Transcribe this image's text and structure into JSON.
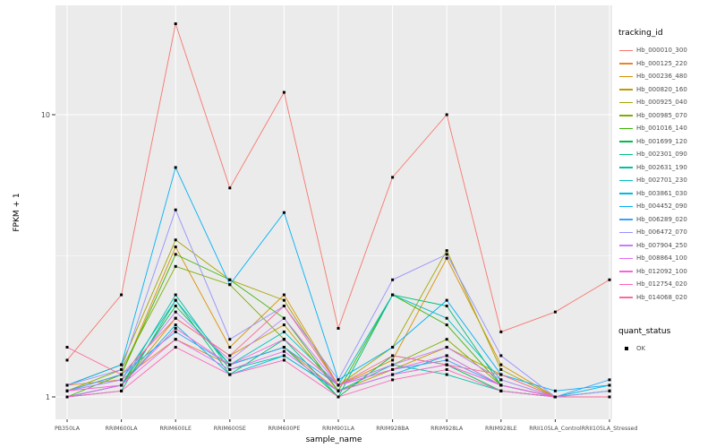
{
  "chart_data": {
    "type": "line",
    "title": "",
    "xlabel": "sample_name",
    "ylabel": "FPKM + 1",
    "y_scale": "log10",
    "y_ticks": [
      1,
      10
    ],
    "y_minor_ticks": [
      3.1623
    ],
    "ylim_log": [
      1,
      24
    ],
    "grid": true,
    "panel_bg": "#EBEBEB",
    "grid_color": "#FFFFFF",
    "axis_text_color": "#4D4D4D",
    "tick_color": "#333333",
    "point_color": "#000000",
    "legend_position": "right",
    "categories": [
      "PB350LA",
      "RRIM600LA",
      "RRIM600LE",
      "RRIM600SE",
      "RRIM600PE",
      "RRIM901LA",
      "RRIM928BA",
      "RRIM928LA",
      "RRIM928LE",
      "RRII105LA_Control",
      "RRII105LA_Stressed"
    ],
    "series": [
      {
        "name": "Hb_000010_300",
        "color": "#F8766D",
        "values": [
          1.35,
          2.3,
          21.0,
          5.5,
          12.0,
          1.75,
          6.0,
          10.0,
          1.7,
          2.0,
          2.6
        ]
      },
      {
        "name": "Hb_000125_220",
        "color": "#EA8331",
        "values": [
          1.1,
          1.15,
          1.6,
          1.3,
          1.5,
          1.05,
          1.2,
          1.3,
          1.1,
          1.0,
          1.05
        ]
      },
      {
        "name": "Hb_000236_480",
        "color": "#D89000",
        "values": [
          1.05,
          1.2,
          3.4,
          1.5,
          2.3,
          1.1,
          1.35,
          3.1,
          1.3,
          1.0,
          1.0
        ]
      },
      {
        "name": "Hb_000820_160",
        "color": "#C09B00",
        "values": [
          1.0,
          1.1,
          1.9,
          1.4,
          1.8,
          1.05,
          1.25,
          1.5,
          1.2,
          1.0,
          1.0
        ]
      },
      {
        "name": "Hb_000925_040",
        "color": "#A3A500",
        "values": [
          1.1,
          1.3,
          3.6,
          2.6,
          2.2,
          1.1,
          1.5,
          3.3,
          1.25,
          1.0,
          1.0
        ]
      },
      {
        "name": "Hb_000985_070",
        "color": "#7CAE00",
        "values": [
          1.05,
          1.25,
          2.9,
          2.5,
          1.6,
          1.1,
          1.3,
          1.6,
          1.1,
          1.0,
          1.0
        ]
      },
      {
        "name": "Hb_001016_140",
        "color": "#39B600",
        "values": [
          1.0,
          1.2,
          3.2,
          2.6,
          1.9,
          1.05,
          2.3,
          1.8,
          1.1,
          1.0,
          1.0
        ]
      },
      {
        "name": "Hb_001699_120",
        "color": "#00BB4E",
        "values": [
          1.0,
          1.1,
          2.1,
          1.3,
          1.5,
          1.0,
          1.4,
          1.3,
          1.05,
          1.0,
          1.0
        ]
      },
      {
        "name": "Hb_002301_090",
        "color": "#00BF7D",
        "values": [
          1.0,
          1.05,
          2.2,
          1.2,
          1.6,
          1.0,
          2.3,
          2.1,
          1.1,
          1.0,
          1.0
        ]
      },
      {
        "name": "Hb_002631_190",
        "color": "#00C1A3",
        "values": [
          1.0,
          1.1,
          2.3,
          1.25,
          1.4,
          1.05,
          1.3,
          1.2,
          1.05,
          1.0,
          1.0
        ]
      },
      {
        "name": "Hb_002701_230",
        "color": "#00BFC4",
        "values": [
          1.05,
          1.15,
          2.2,
          1.3,
          1.7,
          1.1,
          2.3,
          1.9,
          1.15,
          1.0,
          1.05
        ]
      },
      {
        "name": "Hb_003861_030",
        "color": "#00BAE0",
        "values": [
          1.0,
          1.1,
          1.8,
          1.2,
          1.4,
          1.05,
          1.2,
          1.4,
          1.1,
          1.0,
          1.1
        ]
      },
      {
        "name": "Hb_004452_090",
        "color": "#00B0F6",
        "values": [
          1.1,
          1.3,
          6.5,
          2.5,
          4.5,
          1.15,
          1.5,
          2.2,
          1.2,
          1.05,
          1.1
        ]
      },
      {
        "name": "Hb_006289_020",
        "color": "#35A2FF",
        "values": [
          1.05,
          1.2,
          1.7,
          1.3,
          1.5,
          1.1,
          1.25,
          1.35,
          1.1,
          1.0,
          1.15
        ]
      },
      {
        "name": "Hb_006472_070",
        "color": "#9590FF",
        "values": [
          1.1,
          1.25,
          4.6,
          1.6,
          2.1,
          1.15,
          2.6,
          3.2,
          1.4,
          1.0,
          1.05
        ]
      },
      {
        "name": "Hb_007904_250",
        "color": "#C77CFF",
        "values": [
          1.05,
          1.15,
          2.0,
          1.35,
          1.9,
          1.1,
          1.3,
          1.5,
          1.15,
          1.0,
          1.0
        ]
      },
      {
        "name": "Hb_008864_100",
        "color": "#E76BF3",
        "values": [
          1.0,
          1.1,
          1.6,
          1.25,
          1.45,
          1.05,
          1.2,
          1.3,
          1.1,
          1.0,
          1.0
        ]
      },
      {
        "name": "Hb_012092_100",
        "color": "#FA62DB",
        "values": [
          1.05,
          1.1,
          1.75,
          1.3,
          1.6,
          1.1,
          1.25,
          1.4,
          1.1,
          1.0,
          1.0
        ]
      },
      {
        "name": "Hb_012754_020",
        "color": "#FF62BC",
        "values": [
          1.0,
          1.05,
          1.5,
          1.2,
          1.35,
          1.0,
          1.15,
          1.25,
          1.05,
          1.0,
          1.0
        ]
      },
      {
        "name": "Hb_014068_020",
        "color": "#FF6A98",
        "values": [
          1.5,
          1.2,
          1.9,
          1.4,
          2.1,
          1.1,
          1.4,
          1.3,
          1.2,
          1.0,
          1.0
        ]
      }
    ],
    "legends": {
      "tracking_id_title": "tracking_id",
      "quant_status_title": "quant_status",
      "quant_status_items": [
        {
          "label": "OK"
        }
      ]
    }
  }
}
